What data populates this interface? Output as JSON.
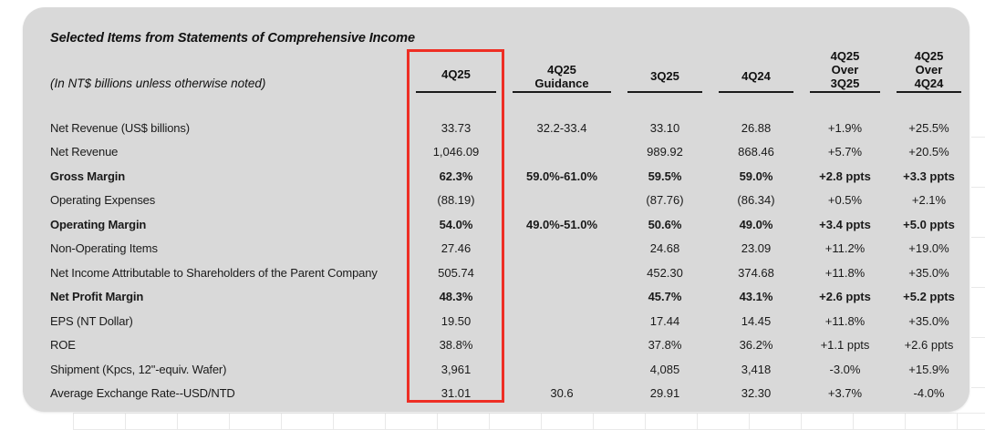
{
  "title": "Selected Items from Statements of Comprehensive Income",
  "subtitle": "(In NT$ billions unless otherwise noted)",
  "card": {
    "background": "#d9d9d9"
  },
  "highlight": {
    "color": "#ee2e24",
    "highlighted_column": "4Q25"
  },
  "table": {
    "columns": [
      {
        "key": "label",
        "lines": []
      },
      {
        "key": "q4_25",
        "lines": [
          "4Q25"
        ]
      },
      {
        "key": "guidance",
        "lines": [
          "4Q25",
          "Guidance"
        ]
      },
      {
        "key": "q3_25",
        "lines": [
          "3Q25"
        ]
      },
      {
        "key": "q4_24",
        "lines": [
          "4Q24"
        ]
      },
      {
        "key": "over_3q25",
        "lines": [
          "4Q25",
          "Over",
          "3Q25"
        ]
      },
      {
        "key": "over_4q24",
        "lines": [
          "4Q25",
          "Over",
          "4Q24"
        ]
      }
    ],
    "rows": [
      {
        "label": "Net Revenue (US$ billions)",
        "bold": false,
        "q4_25": "33.73",
        "guidance": "32.2-33.4",
        "q3_25": "33.10",
        "q4_24": "26.88",
        "over_3q25": "+1.9%",
        "over_4q24": "+25.5%"
      },
      {
        "label": "Net Revenue",
        "bold": false,
        "q4_25": "1,046.09",
        "q3_25": "989.92",
        "q4_24": "868.46",
        "over_3q25": "+5.7%",
        "over_4q24": "+20.5%"
      },
      {
        "label": "Gross Margin",
        "bold": true,
        "q4_25": "62.3%",
        "guidance": "59.0%-61.0%",
        "q3_25": "59.5%",
        "q4_24": "59.0%",
        "over_3q25": "+2.8 ppts",
        "over_4q24": "+3.3 ppts"
      },
      {
        "label": "Operating Expenses",
        "bold": false,
        "q4_25": "(88.19)",
        "q3_25": "(87.76)",
        "q4_24": "(86.34)",
        "over_3q25": "+0.5%",
        "over_4q24": "+2.1%"
      },
      {
        "label": "Operating Margin",
        "bold": true,
        "q4_25": "54.0%",
        "guidance": "49.0%-51.0%",
        "q3_25": "50.6%",
        "q4_24": "49.0%",
        "over_3q25": "+3.4 ppts",
        "over_4q24": "+5.0 ppts"
      },
      {
        "label": "Non-Operating Items",
        "bold": false,
        "q4_25": "27.46",
        "q3_25": "24.68",
        "q4_24": "23.09",
        "over_3q25": "+11.2%",
        "over_4q24": "+19.0%"
      },
      {
        "label": "Net Income Attributable to Shareholders of the Parent Company",
        "bold": false,
        "q4_25": "505.74",
        "q3_25": "452.30",
        "q4_24": "374.68",
        "over_3q25": "+11.8%",
        "over_4q24": "+35.0%"
      },
      {
        "label": "Net Profit Margin",
        "bold": true,
        "q4_25": "48.3%",
        "q3_25": "45.7%",
        "q4_24": "43.1%",
        "over_3q25": "+2.6 ppts",
        "over_4q24": "+5.2 ppts"
      },
      {
        "label": "EPS (NT Dollar)",
        "bold": false,
        "q4_25": "19.50",
        "q3_25": "17.44",
        "q4_24": "14.45",
        "over_3q25": "+11.8%",
        "over_4q24": "+35.0%"
      },
      {
        "label": "ROE",
        "bold": false,
        "q4_25": "38.8%",
        "q3_25": "37.8%",
        "q4_24": "36.2%",
        "over_3q25": "+1.1 ppts",
        "over_4q24": "+2.6 ppts"
      },
      {
        "label": "Shipment (Kpcs, 12\"-equiv. Wafer)",
        "bold": false,
        "q4_25": "3,961",
        "q3_25": "4,085",
        "q4_24": "3,418",
        "over_3q25": "-3.0%",
        "over_4q24": "+15.9%"
      },
      {
        "label": "Average Exchange Rate--USD/NTD",
        "bold": false,
        "q4_25": "31.01",
        "guidance": "30.6",
        "q3_25": "29.91",
        "q4_24": "32.30",
        "over_3q25": "+3.7%",
        "over_4q24": "-4.0%"
      }
    ]
  }
}
